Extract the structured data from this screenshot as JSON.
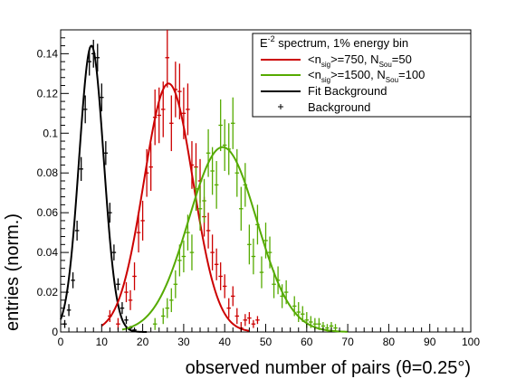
{
  "chart_data": {
    "type": "scatter",
    "title": "",
    "xlabel": "observed number of pairs (θ=0.25°)",
    "ylabel": "entries (norm.)",
    "xlim": [
      0,
      100
    ],
    "ylim": [
      0,
      0.152
    ],
    "x_ticks": [
      0,
      10,
      20,
      30,
      40,
      50,
      60,
      70,
      80,
      90,
      100
    ],
    "y_ticks": [
      0,
      0.02,
      0.04,
      0.06,
      0.08,
      0.1,
      0.12,
      0.14
    ],
    "x_tick_labels": [
      "0",
      "10",
      "20",
      "30",
      "40",
      "50",
      "60",
      "70",
      "80",
      "90",
      "100"
    ],
    "y_tick_labels": [
      "0",
      "0.02",
      "0.04",
      "0.06",
      "0.08",
      "0.1",
      "0.12",
      "0.14"
    ],
    "legend": {
      "position": "top-right",
      "header": {
        "prefix": "E",
        "sup": "-2",
        "suffix": " spectrum, 1% energy bin"
      },
      "items": [
        {
          "key": "red",
          "marker": "line",
          "color": "#cc0000",
          "parts": {
            "a": "<n",
            "a_sub": "sig",
            "b": ">=750, N",
            "b_sub": "Sou",
            "c": "=50"
          }
        },
        {
          "key": "green",
          "marker": "line",
          "color": "#55aa00",
          "parts": {
            "a": "<n",
            "a_sub": "sig",
            "b": ">=1500, N",
            "b_sub": "Sou",
            "c": "=100"
          }
        },
        {
          "key": "fit",
          "marker": "line",
          "color": "#000000",
          "text": "Fit Background"
        },
        {
          "key": "bkg",
          "marker": "cross",
          "color": "#000000",
          "text": "Background"
        }
      ]
    },
    "series": [
      {
        "name": "Background",
        "style": "points",
        "color": "#000000",
        "x": [
          1,
          2,
          3,
          4,
          5,
          6,
          7,
          8,
          9,
          10,
          11,
          12,
          13,
          14,
          15,
          16,
          17,
          18
        ],
        "y": [
          0.004,
          0.011,
          0.026,
          0.051,
          0.082,
          0.112,
          0.136,
          0.14,
          0.138,
          0.118,
          0.09,
          0.06,
          0.04,
          0.024,
          0.012,
          0.006,
          0.002,
          0.001
        ],
        "yerr": [
          0.002,
          0.003,
          0.004,
          0.005,
          0.006,
          0.007,
          0.007,
          0.007,
          0.007,
          0.007,
          0.006,
          0.005,
          0.004,
          0.003,
          0.003,
          0.002,
          0.001,
          0.001
        ]
      },
      {
        "name": "Fit Background",
        "style": "curve",
        "color": "#000000",
        "function": "gaussian",
        "amplitude": 0.144,
        "mean": 7.5,
        "sigma": 3.0,
        "x_range": [
          0,
          21
        ]
      },
      {
        "name": "<n_sig>=750, N_Sou=50 (points)",
        "style": "points",
        "color": "#cc0000",
        "x": [
          12,
          14,
          16,
          17,
          18,
          19,
          20,
          21,
          22,
          23,
          24,
          25,
          26,
          27,
          28,
          29,
          30,
          31,
          32,
          33,
          34,
          35,
          36,
          37,
          38,
          39,
          40,
          41,
          42,
          43,
          44,
          45,
          46,
          47,
          48
        ],
        "y": [
          0.008,
          0.004,
          0.02,
          0.016,
          0.028,
          0.05,
          0.056,
          0.08,
          0.083,
          0.108,
          0.109,
          0.112,
          0.138,
          0.105,
          0.122,
          0.121,
          0.11,
          0.112,
          0.084,
          0.083,
          0.076,
          0.058,
          0.051,
          0.04,
          0.034,
          0.028,
          0.023,
          0.012,
          0.018,
          0.008,
          0.002,
          0.006,
          0.007,
          0.004,
          0.006
        ],
        "yerr": [
          0.003,
          0.003,
          0.005,
          0.005,
          0.007,
          0.01,
          0.01,
          0.012,
          0.012,
          0.014,
          0.014,
          0.014,
          0.015,
          0.014,
          0.014,
          0.014,
          0.013,
          0.013,
          0.012,
          0.012,
          0.011,
          0.01,
          0.009,
          0.009,
          0.008,
          0.007,
          0.006,
          0.005,
          0.005,
          0.004,
          0.003,
          0.003,
          0.003,
          0.002,
          0.002
        ]
      },
      {
        "name": "<n_sig>=750, N_Sou=50",
        "style": "curve",
        "color": "#cc0000",
        "function": "gaussian",
        "amplitude": 0.125,
        "mean": 26.3,
        "sigma": 6.0,
        "x_range": [
          10,
          46
        ]
      },
      {
        "name": "<n_sig>=1500, N_Sou=100 (points)",
        "style": "points",
        "color": "#55aa00",
        "x": [
          23,
          25,
          26,
          27,
          28,
          29,
          30,
          31,
          32,
          33,
          34,
          35,
          36,
          37,
          38,
          39,
          40,
          41,
          42,
          43,
          44,
          45,
          46,
          47,
          48,
          49,
          50,
          51,
          52,
          53,
          54,
          55,
          57,
          58,
          59,
          60,
          61,
          62,
          63,
          64,
          65,
          66,
          67
        ],
        "y": [
          0.004,
          0.008,
          0.012,
          0.016,
          0.024,
          0.036,
          0.038,
          0.05,
          0.04,
          0.072,
          0.062,
          0.066,
          0.09,
          0.081,
          0.074,
          0.104,
          0.094,
          0.092,
          0.105,
          0.08,
          0.062,
          0.074,
          0.044,
          0.038,
          0.054,
          0.03,
          0.046,
          0.04,
          0.024,
          0.026,
          0.018,
          0.02,
          0.013,
          0.01,
          0.009,
          0.006,
          0.005,
          0.004,
          0.004,
          0.003,
          0.002,
          0.003,
          0.002
        ],
        "yerr": [
          0.003,
          0.004,
          0.005,
          0.006,
          0.007,
          0.008,
          0.008,
          0.009,
          0.009,
          0.011,
          0.011,
          0.011,
          0.012,
          0.012,
          0.012,
          0.013,
          0.013,
          0.013,
          0.013,
          0.012,
          0.011,
          0.011,
          0.01,
          0.009,
          0.01,
          0.008,
          0.009,
          0.008,
          0.007,
          0.007,
          0.006,
          0.006,
          0.005,
          0.005,
          0.004,
          0.004,
          0.003,
          0.003,
          0.003,
          0.002,
          0.002,
          0.002,
          0.002
        ]
      },
      {
        "name": "<n_sig>=1500, N_Sou=100",
        "style": "curve",
        "color": "#55aa00",
        "function": "gaussian",
        "amplitude": 0.093,
        "mean": 39.5,
        "sigma": 8.3,
        "x_range": [
          15,
          70
        ]
      }
    ]
  }
}
